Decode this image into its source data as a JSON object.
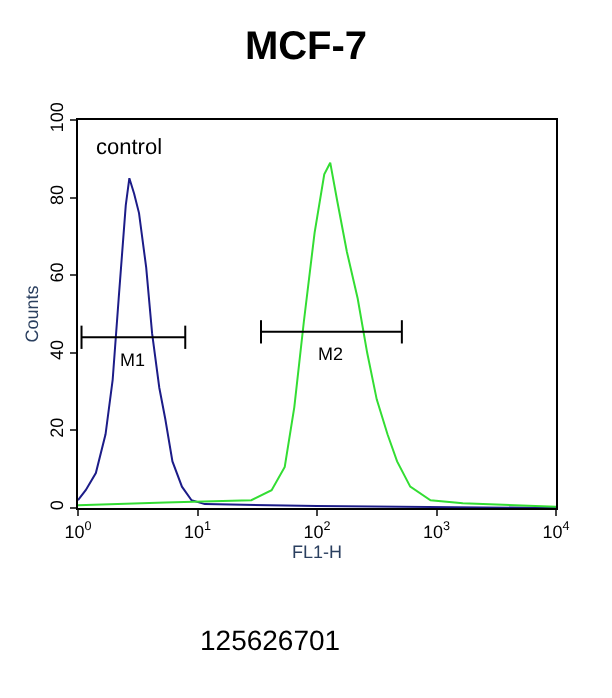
{
  "chart_data": {
    "type": "line",
    "title": "MCF-7",
    "xlabel": "FL1-H",
    "ylabel": "Counts",
    "log": "x",
    "xlim": [
      1,
      10000
    ],
    "xticks": [
      {
        "value": 1,
        "label": "10$^{0}$"
      },
      {
        "value": 10,
        "label": "10$^{1}$"
      },
      {
        "value": 100,
        "label": "10$^{2}$"
      },
      {
        "value": 1000,
        "label": "10$^{3}$"
      },
      {
        "value": 10000,
        "label": "10$^{4}$"
      }
    ],
    "ylim": [
      0,
      100
    ],
    "yticks": [
      0,
      20,
      40,
      60,
      80,
      100
    ],
    "grid": false,
    "legend": false,
    "marker": "none",
    "line_style": "solid",
    "series": [
      {
        "name": "control",
        "color": "#1c1c88",
        "x": [
          1,
          1.16,
          1.41,
          1.7,
          1.95,
          2.19,
          2.51,
          2.69,
          2.95,
          3.24,
          3.72,
          4.17,
          4.79,
          5.37,
          6.17,
          7.41,
          8.91,
          11.5,
          100,
          10000
        ],
        "values": [
          2,
          4.6,
          9,
          19,
          33,
          54,
          78,
          85,
          81,
          76,
          62,
          45,
          31,
          23,
          12,
          5.5,
          2,
          1,
          0.5,
          0
        ]
      },
      {
        "color": "#33dd33",
        "x": [
          1,
          5.37,
          28.2,
          41.7,
          53.7,
          64.6,
          77.6,
          95.5,
          115,
          129,
          148,
          178,
          219,
          263,
          316,
          389,
          468,
          603,
          891,
          1660,
          10000
        ],
        "values": [
          0.7,
          1.4,
          2,
          4.6,
          10.6,
          26,
          48,
          71,
          86,
          89,
          79,
          66,
          54,
          40,
          28,
          19,
          12,
          5.5,
          2,
          1.2,
          0.3
        ]
      },
      {
        "color": "#000000",
        "x": [
          1.07,
          7.9
        ],
        "values": [
          44,
          44
        ],
        "errors": [
          3,
          3
        ]
      },
      {
        "color": "#000000",
        "x": [
          34,
          513
        ],
        "values": [
          45.4,
          45.4
        ],
        "errors": [
          3,
          3
        ]
      }
    ],
    "annotations": [
      "M1",
      "M2",
      "125626701"
    ]
  }
}
